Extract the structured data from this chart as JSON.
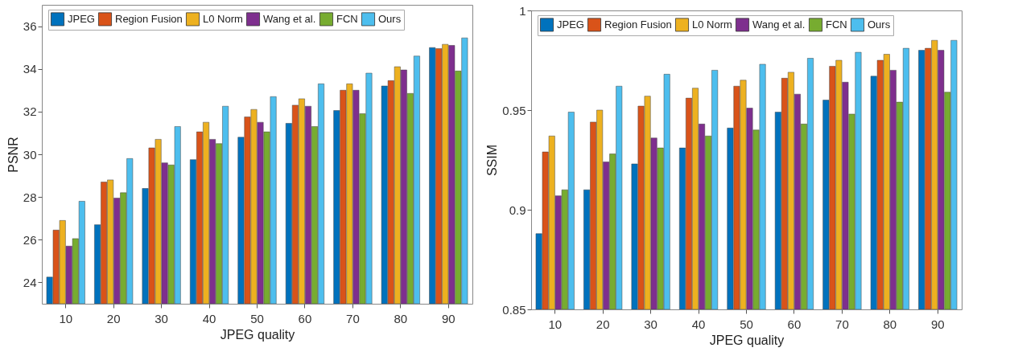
{
  "chart_data": [
    {
      "type": "bar",
      "xlabel": "JPEG quality",
      "ylabel": "PSNR",
      "categories": [
        "10",
        "20",
        "30",
        "40",
        "50",
        "60",
        "70",
        "80",
        "90"
      ],
      "ylim": [
        23,
        37
      ],
      "yticks": [
        24,
        26,
        28,
        30,
        32,
        34,
        36
      ],
      "legend": "top",
      "series": [
        {
          "name": "JPEG",
          "color": "#0072bd",
          "values": [
            24.25,
            26.7,
            28.4,
            29.75,
            30.8,
            31.45,
            32.05,
            33.2,
            35.0
          ]
        },
        {
          "name": "Region Fusion",
          "color": "#d95319",
          "values": [
            26.45,
            28.7,
            30.3,
            31.05,
            31.75,
            32.3,
            33.0,
            33.45,
            34.95
          ]
        },
        {
          "name": "L0 Norm",
          "color": "#edb120",
          "values": [
            26.9,
            28.8,
            30.7,
            31.5,
            32.1,
            32.6,
            33.3,
            34.1,
            35.15
          ]
        },
        {
          "name": "Wang et al.",
          "color": "#7e2f8e",
          "values": [
            25.7,
            27.95,
            29.6,
            30.7,
            31.5,
            32.25,
            33.0,
            33.95,
            35.1
          ]
        },
        {
          "name": "FCN",
          "color": "#77ac30",
          "values": [
            26.05,
            28.2,
            29.5,
            30.5,
            31.05,
            31.3,
            31.9,
            32.85,
            33.9
          ]
        },
        {
          "name": "Ours",
          "color": "#4dbeee",
          "values": [
            27.8,
            29.8,
            31.3,
            32.25,
            32.7,
            33.3,
            33.8,
            34.6,
            35.45
          ]
        }
      ]
    },
    {
      "type": "bar",
      "xlabel": "JPEG quality",
      "ylabel": "SSIM",
      "categories": [
        "10",
        "20",
        "30",
        "40",
        "50",
        "60",
        "70",
        "80",
        "90"
      ],
      "ylim": [
        0.85,
        1
      ],
      "yticks": [
        0.85,
        0.9,
        0.95,
        1
      ],
      "legend": "top",
      "series": [
        {
          "name": "JPEG",
          "color": "#0072bd",
          "values": [
            0.888,
            0.91,
            0.923,
            0.931,
            0.941,
            0.949,
            0.955,
            0.967,
            0.98
          ]
        },
        {
          "name": "Region Fusion",
          "color": "#d95319",
          "values": [
            0.929,
            0.944,
            0.952,
            0.956,
            0.962,
            0.966,
            0.972,
            0.975,
            0.981
          ]
        },
        {
          "name": "L0 Norm",
          "color": "#edb120",
          "values": [
            0.937,
            0.95,
            0.957,
            0.961,
            0.965,
            0.969,
            0.975,
            0.978,
            0.985
          ]
        },
        {
          "name": "Wang et al.",
          "color": "#7e2f8e",
          "values": [
            0.907,
            0.924,
            0.936,
            0.943,
            0.951,
            0.958,
            0.964,
            0.97,
            0.98
          ]
        },
        {
          "name": "FCN",
          "color": "#77ac30",
          "values": [
            0.91,
            0.928,
            0.931,
            0.937,
            0.94,
            0.943,
            0.948,
            0.954,
            0.959
          ]
        },
        {
          "name": "Ours",
          "color": "#4dbeee",
          "values": [
            0.949,
            0.962,
            0.968,
            0.97,
            0.973,
            0.976,
            0.979,
            0.981,
            0.985
          ]
        }
      ]
    }
  ]
}
